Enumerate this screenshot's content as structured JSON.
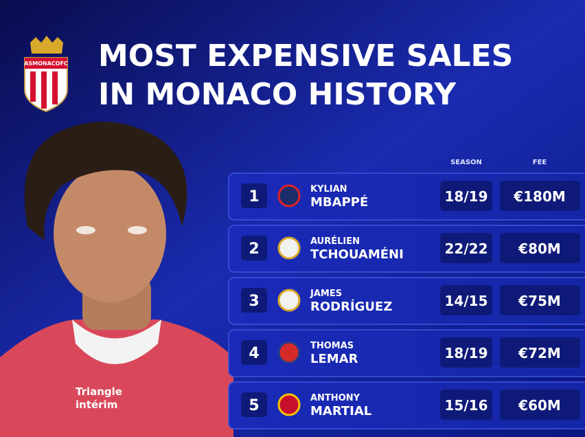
{
  "header": {
    "title_lines": [
      "MOST EXPENSIVE SALES",
      "IN MONACO HISTORY"
    ],
    "logo_text": "ASMONACOFC"
  },
  "photo": {
    "shirt_text": [
      "Triangle",
      "intérim"
    ]
  },
  "table": {
    "columns": [
      "SEASON",
      "FEE"
    ],
    "rows": [
      {
        "rank": "1",
        "first_name": "KYLIAN",
        "last_name": "MBAPPÉ",
        "season": "18/19",
        "fee": "€180M"
      },
      {
        "rank": "2",
        "first_name": "AURÉLIEN",
        "last_name": "TCHOUAMÉNI",
        "season": "22/22",
        "fee": "€80M"
      },
      {
        "rank": "3",
        "first_name": "JAMES",
        "last_name": "RODRÍGUEZ",
        "season": "14/15",
        "fee": "€75M"
      },
      {
        "rank": "4",
        "first_name": "THOMAS",
        "last_name": "LEMAR",
        "season": "18/19",
        "fee": "€72M"
      },
      {
        "rank": "5",
        "first_name": "ANTHONY",
        "last_name": "MARTIAL",
        "season": "15/16",
        "fee": "€60M"
      }
    ]
  }
}
